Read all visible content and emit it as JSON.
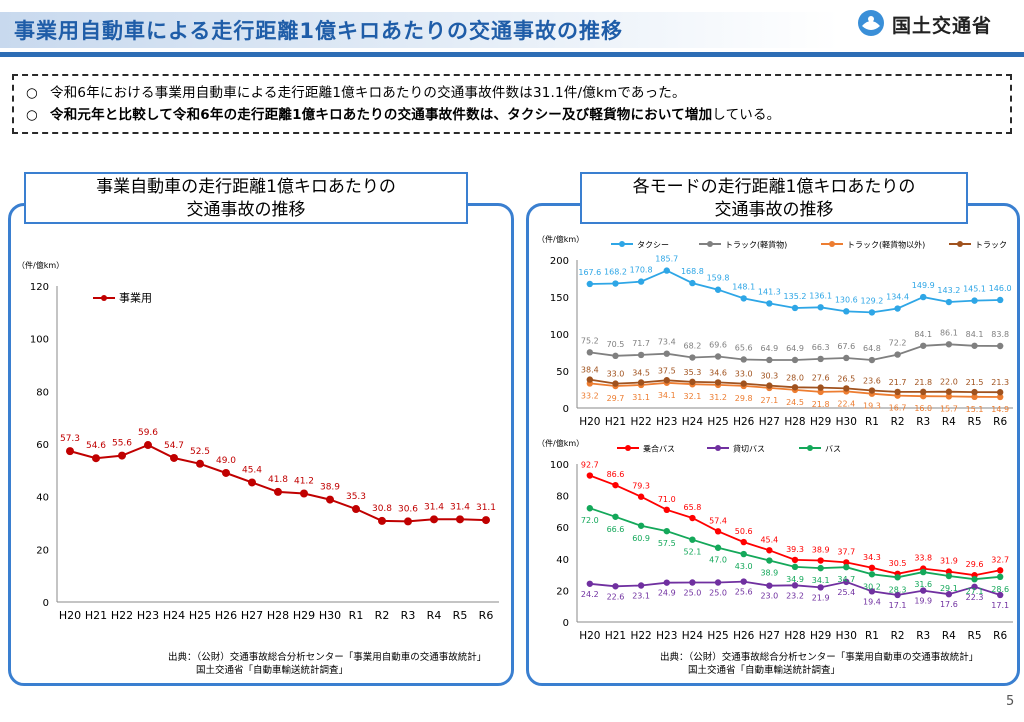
{
  "header": {
    "title": "事業用自動車による走行距離1億キロあたりの交通事故の推移",
    "logo_text": "国土交通省",
    "accent_color": "#1f5da8"
  },
  "summary": {
    "bullet": "○",
    "line1": "令和6年における事業用自動車による走行距離1億キロあたりの交通事故件数は31.1件/億kmであった。",
    "line2_bold": "令和元年と比較して令和6年の走行距離1億キロあたりの交通事故件数は、タクシー及び軽貨物において増加",
    "line2_rest": "している。"
  },
  "panels": {
    "left": {
      "heading_line1": "事業自動車の走行距離1億キロあたりの",
      "heading_line2": "交通事故の推移"
    },
    "right": {
      "heading_line1": "各モードの走行距離1億キロあたりの",
      "heading_line2": "交通事故の推移"
    }
  },
  "sources": {
    "left_line1": "出典：（公財）交通事故総合分析センター「事業用自動車の交通事故統計」",
    "left_line2": "国土交通省「自動車輸送統計調査」",
    "right_line1": "出典：（公財）交通事故総合分析センター「事業用自動車の交通事故統計」",
    "right_line2": "国土交通省「自動車輸送統計調査」"
  },
  "page_number": "5",
  "chart_data": [
    {
      "type": "line",
      "unit_label": "（件/億km）",
      "categories": [
        "H20",
        "H21",
        "H22",
        "H23",
        "H24",
        "H25",
        "H26",
        "H27",
        "H28",
        "H29",
        "H30",
        "R1",
        "R2",
        "R3",
        "R4",
        "R5",
        "R6"
      ],
      "ylim": [
        0,
        120
      ],
      "yticks": [
        0,
        20,
        40,
        60,
        80,
        100,
        120
      ],
      "legend_position": "top-left",
      "series": [
        {
          "name": "事業用",
          "color": "#c00000",
          "values": [
            57.3,
            54.6,
            55.6,
            59.6,
            54.7,
            52.5,
            49.0,
            45.4,
            41.8,
            41.2,
            38.9,
            35.3,
            30.8,
            30.6,
            31.4,
            31.4,
            31.1
          ]
        }
      ]
    },
    {
      "type": "line",
      "unit_label": "（件/億km）",
      "categories": [
        "H20",
        "H21",
        "H22",
        "H23",
        "H24",
        "H25",
        "H26",
        "H27",
        "H28",
        "H29",
        "H30",
        "R1",
        "R2",
        "R3",
        "R4",
        "R5",
        "R6"
      ],
      "ylim": [
        0,
        200
      ],
      "yticks": [
        0,
        50,
        100,
        150,
        200
      ],
      "legend_position": "top",
      "series": [
        {
          "name": "タクシー",
          "color": "#2ea6e6",
          "values": [
            167.6,
            168.2,
            170.8,
            185.7,
            168.8,
            159.8,
            148.1,
            141.3,
            135.2,
            136.1,
            130.6,
            129.2,
            134.4,
            149.9,
            143.2,
            145.1,
            146.0
          ]
        },
        {
          "name": "トラック(軽貨物)",
          "color": "#808080",
          "values": [
            75.2,
            70.5,
            71.7,
            73.4,
            68.2,
            69.6,
            65.6,
            64.9,
            64.9,
            66.3,
            67.6,
            64.8,
            72.2,
            84.1,
            86.1,
            84.1,
            83.8
          ]
        },
        {
          "name": "トラック(軽貨物以外)",
          "color": "#ed7d31",
          "values": [
            33.2,
            29.7,
            31.1,
            34.1,
            32.1,
            31.2,
            29.8,
            27.1,
            24.5,
            21.8,
            22.4,
            19.3,
            16.7,
            16.0,
            15.7,
            15.1,
            14.9
          ]
        },
        {
          "name": "トラック",
          "color": "#a0521e",
          "values": [
            38.4,
            33.0,
            34.5,
            37.5,
            35.3,
            34.6,
            33.0,
            30.3,
            28.0,
            27.6,
            26.5,
            23.6,
            21.7,
            21.8,
            22.0,
            21.5,
            21.3
          ]
        }
      ]
    },
    {
      "type": "line",
      "unit_label": "（件/億km）",
      "categories": [
        "H20",
        "H21",
        "H22",
        "H23",
        "H24",
        "H25",
        "H26",
        "H27",
        "H28",
        "H29",
        "H30",
        "R1",
        "R2",
        "R3",
        "R4",
        "R5",
        "R6"
      ],
      "ylim": [
        0,
        100
      ],
      "yticks": [
        0,
        20,
        40,
        60,
        80,
        100
      ],
      "legend_position": "top",
      "series": [
        {
          "name": "乗合バス",
          "color": "#ff0000",
          "values": [
            92.7,
            86.6,
            79.3,
            71.0,
            65.8,
            57.4,
            50.6,
            45.4,
            39.3,
            38.9,
            37.7,
            34.3,
            30.5,
            33.8,
            31.9,
            29.6,
            32.7
          ]
        },
        {
          "name": "貸切バス",
          "color": "#7030a0",
          "values": [
            24.2,
            22.6,
            23.1,
            24.9,
            25.0,
            25.0,
            25.6,
            23.0,
            23.2,
            21.9,
            25.4,
            19.4,
            17.1,
            19.9,
            17.6,
            22.3,
            17.1
          ]
        },
        {
          "name": "バス",
          "color": "#14a85a",
          "values": [
            72.0,
            66.6,
            60.9,
            57.5,
            52.1,
            47.0,
            43.0,
            38.9,
            34.9,
            34.1,
            34.7,
            30.2,
            28.3,
            31.6,
            29.1,
            27.1,
            28.6
          ]
        }
      ]
    }
  ]
}
